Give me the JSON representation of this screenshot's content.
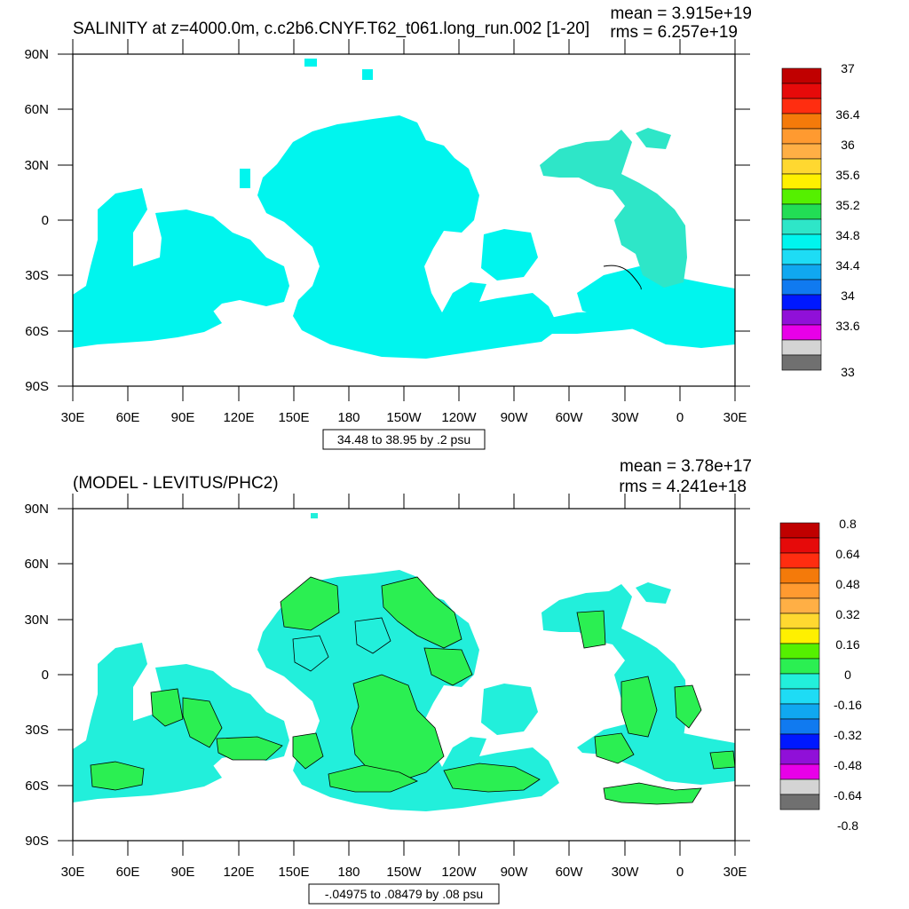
{
  "colors": {
    "sal_cyan": "#00f5ee",
    "sal_aqua": "#2ee6c8",
    "diff_cyan": "#22efdb",
    "diff_green": "#2bef52",
    "frame": "#000000",
    "background": "#ffffff"
  },
  "panels": [
    {
      "id": "salinity",
      "title": "SALINITY at z=4000.0m, c.c2b6.CNYF.T62_t061.long_run.002 [1-20]",
      "stats": [
        "mean = 3.915e+19",
        "rms = 6.257e+19"
      ],
      "lat_labels": [
        "90N",
        "60N",
        "30N",
        "0",
        "30S",
        "60S",
        "90S"
      ],
      "lon_labels": [
        "30E",
        "60E",
        "90E",
        "120E",
        "150E",
        "180",
        "150W",
        "120W",
        "90W",
        "60W",
        "30W",
        "0",
        "30E"
      ],
      "caption": "34.48 to 38.95 by .2 psu",
      "colorbar": {
        "labels": [
          "37",
          "36.4",
          "36",
          "35.6",
          "35.2",
          "34.8",
          "34.4",
          "34",
          "33.6",
          "33"
        ],
        "colors": [
          "#c00000",
          "#e60a0a",
          "#ff2d10",
          "#f47a0a",
          "#ff9a30",
          "#ffaf45",
          "#ffd830",
          "#fff000",
          "#55f000",
          "#22dd55",
          "#2ee6c8",
          "#00f5ee",
          "#1edcf5",
          "#10a8f0",
          "#107af0",
          "#0018ff",
          "#9010d8",
          "#e800e8",
          "#d4d4d4",
          "#707070"
        ]
      }
    },
    {
      "id": "difference",
      "title": "(MODEL - LEVITUS/PHC2)",
      "stats": [
        "mean = 3.78e+17",
        "rms = 4.241e+18"
      ],
      "lat_labels": [
        "90N",
        "60N",
        "30N",
        "0",
        "30S",
        "60S",
        "90S"
      ],
      "lon_labels": [
        "30E",
        "60E",
        "90E",
        "120E",
        "150E",
        "180",
        "150W",
        "120W",
        "90W",
        "60W",
        "30W",
        "0",
        "30E"
      ],
      "caption": "-.04975 to .08479 by .08 psu",
      "colorbar": {
        "labels": [
          "0.8",
          "0.64",
          "0.48",
          "0.32",
          "0.16",
          "0",
          "-0.16",
          "-0.32",
          "-0.48",
          "-0.64",
          "-0.8"
        ],
        "colors": [
          "#c00000",
          "#e60a0a",
          "#ff2d10",
          "#f47a0a",
          "#ff9a30",
          "#ffaf45",
          "#ffd830",
          "#fff000",
          "#55f000",
          "#2bef52",
          "#22efdb",
          "#1edcf5",
          "#10a8f0",
          "#107af0",
          "#0018ff",
          "#9010d8",
          "#e800e8",
          "#d4d4d4",
          "#707070"
        ]
      }
    }
  ]
}
